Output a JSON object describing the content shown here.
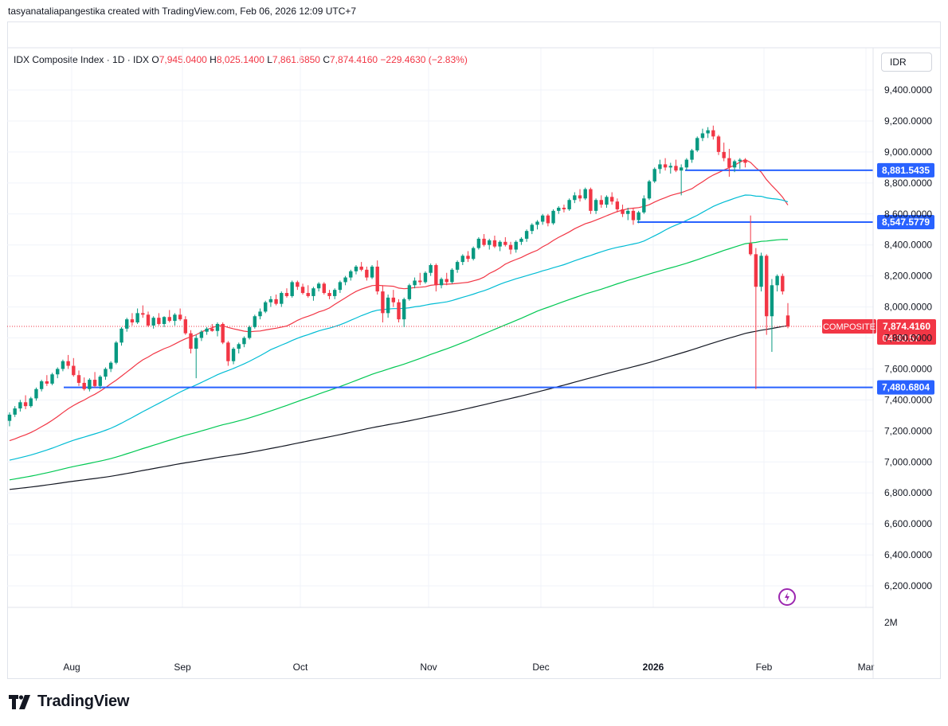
{
  "header": {
    "credit": "tasyanataliapangestika created with TradingView.com, Feb 06, 2026 12:09 UTC+7"
  },
  "legend": {
    "symbol": "IDX Composite Index · 1D · IDX",
    "o_label": "O",
    "o": "7,945.0400",
    "h_label": "H",
    "h": "8,025.1400",
    "l_label": "L",
    "l": "7,861.6850",
    "c_label": "C",
    "c": "7,874.4160",
    "change": "−229.4630 (−2.83%)"
  },
  "currency": "IDR",
  "volume_label": "2M",
  "brand": "TradingView",
  "colors": {
    "up": "#089981",
    "down": "#f23645",
    "level": "#2962ff",
    "ma_fast": "#f23645",
    "ma_mid": "#00bcd4",
    "ma_slow": "#00c853",
    "ma_long": "#131722",
    "grid": "#f0f3fa"
  },
  "chart_data": {
    "type": "candlestick",
    "ylim": [
      6100,
      9500
    ],
    "y_ticks": [
      "9,400.0000",
      "9,200.0000",
      "9,000.0000",
      "8,800.0000",
      "8,600.0000",
      "8,400.0000",
      "8,200.0000",
      "8,000.0000",
      "7,800.0000",
      "7,600.0000",
      "7,400.0000",
      "7,200.0000",
      "7,000.0000",
      "6,800.0000",
      "6,600.0000",
      "6,400.0000",
      "6,200.0000"
    ],
    "y_tick_values": [
      9400,
      9200,
      9000,
      8800,
      8600,
      8400,
      8200,
      8000,
      7800,
      7600,
      7400,
      7200,
      7000,
      6800,
      6600,
      6400,
      6200
    ],
    "x_ticks": [
      "Aug",
      "Sep",
      "Oct",
      "Nov",
      "Dec",
      "2026",
      "Feb",
      "Mar"
    ],
    "horizontal_levels": [
      {
        "value": 8881.5435,
        "label": "8,881.5435"
      },
      {
        "value": 8547.5779,
        "label": "8,547.5779"
      },
      {
        "value": 7480.6804,
        "label": "7,480.6804"
      }
    ],
    "last_price": {
      "value": 7874.416,
      "label": "7,874.4160",
      "symbol": "COMPOSITE",
      "countdown": "04:30:57"
    },
    "candles": [
      [
        7265,
        7320,
        7230,
        7305
      ],
      [
        7305,
        7360,
        7290,
        7345
      ],
      [
        7345,
        7400,
        7325,
        7385
      ],
      [
        7385,
        7430,
        7340,
        7360
      ],
      [
        7360,
        7420,
        7350,
        7410
      ],
      [
        7410,
        7480,
        7395,
        7470
      ],
      [
        7470,
        7530,
        7455,
        7520
      ],
      [
        7520,
        7560,
        7490,
        7505
      ],
      [
        7505,
        7575,
        7495,
        7565
      ],
      [
        7565,
        7610,
        7540,
        7600
      ],
      [
        7600,
        7660,
        7585,
        7650
      ],
      [
        7650,
        7690,
        7600,
        7620
      ],
      [
        7620,
        7670,
        7550,
        7560
      ],
      [
        7560,
        7590,
        7490,
        7510
      ],
      [
        7510,
        7545,
        7460,
        7470
      ],
      [
        7470,
        7540,
        7455,
        7530
      ],
      [
        7530,
        7580,
        7480,
        7490
      ],
      [
        7490,
        7560,
        7470,
        7550
      ],
      [
        7550,
        7610,
        7530,
        7600
      ],
      [
        7600,
        7650,
        7580,
        7640
      ],
      [
        7640,
        7780,
        7630,
        7770
      ],
      [
        7770,
        7870,
        7750,
        7860
      ],
      [
        7860,
        7930,
        7840,
        7920
      ],
      [
        7920,
        7960,
        7880,
        7900
      ],
      [
        7900,
        7990,
        7890,
        7960
      ],
      [
        7960,
        8010,
        7930,
        7950
      ],
      [
        7950,
        7970,
        7870,
        7880
      ],
      [
        7880,
        7940,
        7860,
        7930
      ],
      [
        7930,
        7960,
        7880,
        7890
      ],
      [
        7890,
        7940,
        7870,
        7935
      ],
      [
        7935,
        7980,
        7900,
        7910
      ],
      [
        7910,
        7960,
        7880,
        7950
      ],
      [
        7950,
        7990,
        7910,
        7920
      ],
      [
        7920,
        7940,
        7820,
        7830
      ],
      [
        7830,
        7850,
        7700,
        7730
      ],
      [
        7730,
        7820,
        7540,
        7800
      ],
      [
        7800,
        7850,
        7780,
        7840
      ],
      [
        7840,
        7870,
        7820,
        7860
      ],
      [
        7860,
        7890,
        7840,
        7845
      ],
      [
        7845,
        7900,
        7810,
        7890
      ],
      [
        7890,
        7900,
        7760,
        7770
      ],
      [
        7770,
        7780,
        7620,
        7650
      ],
      [
        7650,
        7740,
        7630,
        7730
      ],
      [
        7730,
        7770,
        7700,
        7760
      ],
      [
        7760,
        7810,
        7740,
        7800
      ],
      [
        7800,
        7880,
        7790,
        7870
      ],
      [
        7870,
        7950,
        7860,
        7940
      ],
      [
        7940,
        7990,
        7920,
        7970
      ],
      [
        7970,
        8040,
        7960,
        8030
      ],
      [
        8030,
        8070,
        8000,
        8050
      ],
      [
        8050,
        8080,
        8010,
        8020
      ],
      [
        8020,
        8100,
        8000,
        8090
      ],
      [
        8090,
        8120,
        8060,
        8070
      ],
      [
        8070,
        8170,
        8060,
        8160
      ],
      [
        8160,
        8170,
        8110,
        8130
      ],
      [
        8130,
        8150,
        8080,
        8090
      ],
      [
        8090,
        8140,
        8060,
        8070
      ],
      [
        8070,
        8130,
        8040,
        8120
      ],
      [
        8120,
        8160,
        8100,
        8150
      ],
      [
        8150,
        8160,
        8080,
        8090
      ],
      [
        8090,
        8110,
        8050,
        8070
      ],
      [
        8070,
        8120,
        8050,
        8110
      ],
      [
        8110,
        8170,
        8090,
        8160
      ],
      [
        8160,
        8200,
        8140,
        8190
      ],
      [
        8190,
        8240,
        8170,
        8230
      ],
      [
        8230,
        8270,
        8210,
        8260
      ],
      [
        8260,
        8290,
        8230,
        8240
      ],
      [
        8240,
        8260,
        8170,
        8190
      ],
      [
        8190,
        8270,
        8180,
        8260
      ],
      [
        8260,
        8300,
        8080,
        8100
      ],
      [
        8100,
        8140,
        7900,
        7960
      ],
      [
        7960,
        8080,
        7930,
        8060
      ],
      [
        8060,
        8110,
        8000,
        8030
      ],
      [
        8030,
        8050,
        7900,
        7920
      ],
      [
        7920,
        8060,
        7870,
        8050
      ],
      [
        8050,
        8150,
        8040,
        8140
      ],
      [
        8140,
        8190,
        8120,
        8170
      ],
      [
        8170,
        8220,
        8140,
        8160
      ],
      [
        8160,
        8230,
        8150,
        8220
      ],
      [
        8220,
        8280,
        8200,
        8270
      ],
      [
        8270,
        8280,
        8100,
        8140
      ],
      [
        8140,
        8190,
        8120,
        8180
      ],
      [
        8180,
        8220,
        8140,
        8160
      ],
      [
        8160,
        8250,
        8150,
        8240
      ],
      [
        8240,
        8300,
        8220,
        8290
      ],
      [
        8290,
        8340,
        8270,
        8330
      ],
      [
        8330,
        8360,
        8290,
        8310
      ],
      [
        8310,
        8390,
        8300,
        8380
      ],
      [
        8380,
        8450,
        8370,
        8440
      ],
      [
        8440,
        8470,
        8390,
        8400
      ],
      [
        8400,
        8440,
        8370,
        8430
      ],
      [
        8430,
        8460,
        8380,
        8390
      ],
      [
        8390,
        8430,
        8360,
        8420
      ],
      [
        8420,
        8450,
        8390,
        8400
      ],
      [
        8400,
        8420,
        8340,
        8370
      ],
      [
        8370,
        8430,
        8350,
        8420
      ],
      [
        8420,
        8450,
        8400,
        8440
      ],
      [
        8440,
        8500,
        8420,
        8490
      ],
      [
        8490,
        8540,
        8470,
        8530
      ],
      [
        8530,
        8560,
        8500,
        8550
      ],
      [
        8550,
        8600,
        8530,
        8590
      ],
      [
        8590,
        8600,
        8520,
        8540
      ],
      [
        8540,
        8630,
        8530,
        8620
      ],
      [
        8620,
        8650,
        8600,
        8640
      ],
      [
        8640,
        8660,
        8610,
        8630
      ],
      [
        8630,
        8700,
        8620,
        8690
      ],
      [
        8690,
        8740,
        8670,
        8720
      ],
      [
        8720,
        8760,
        8680,
        8700
      ],
      [
        8700,
        8770,
        8690,
        8760
      ],
      [
        8760,
        8770,
        8600,
        8620
      ],
      [
        8620,
        8700,
        8600,
        8690
      ],
      [
        8690,
        8720,
        8640,
        8660
      ],
      [
        8660,
        8720,
        8640,
        8710
      ],
      [
        8710,
        8740,
        8660,
        8680
      ],
      [
        8680,
        8700,
        8610,
        8630
      ],
      [
        8630,
        8660,
        8580,
        8600
      ],
      [
        8600,
        8640,
        8560,
        8620
      ],
      [
        8620,
        8640,
        8530,
        8560
      ],
      [
        8560,
        8620,
        8540,
        8610
      ],
      [
        8610,
        8720,
        8600,
        8700
      ],
      [
        8700,
        8820,
        8690,
        8810
      ],
      [
        8810,
        8900,
        8800,
        8890
      ],
      [
        8890,
        8950,
        8860,
        8920
      ],
      [
        8920,
        8960,
        8880,
        8900
      ],
      [
        8900,
        8930,
        8860,
        8910
      ],
      [
        8910,
        8950,
        8870,
        8880
      ],
      [
        8880,
        8920,
        8720,
        8900
      ],
      [
        8900,
        8960,
        8880,
        8950
      ],
      [
        8950,
        9020,
        8930,
        9010
      ],
      [
        9010,
        9100,
        9000,
        9090
      ],
      [
        9090,
        9150,
        9070,
        9120
      ],
      [
        9120,
        9160,
        9090,
        9140
      ],
      [
        9140,
        9170,
        9080,
        9100
      ],
      [
        9100,
        9110,
        8980,
        9000
      ],
      [
        9000,
        9060,
        8940,
        8960
      ],
      [
        8960,
        9020,
        8840,
        8900
      ],
      [
        8900,
        8950,
        8870,
        8940
      ],
      [
        8940,
        8960,
        8890,
        8950
      ],
      [
        8950,
        8960,
        8900,
        8930
      ],
      [
        8410,
        8590,
        8330,
        8340
      ],
      [
        8340,
        8380,
        7470,
        8130
      ],
      [
        8130,
        8350,
        8100,
        8330
      ],
      [
        8330,
        8340,
        7820,
        7940
      ],
      [
        7940,
        8180,
        7710,
        8140
      ],
      [
        8140,
        8210,
        8100,
        8200
      ],
      [
        8200,
        8215,
        8080,
        8100
      ],
      [
        7945,
        8025,
        7862,
        7874
      ]
    ],
    "candle_dates_hint": "daily, Jul 2025 – Feb 06 2026"
  }
}
